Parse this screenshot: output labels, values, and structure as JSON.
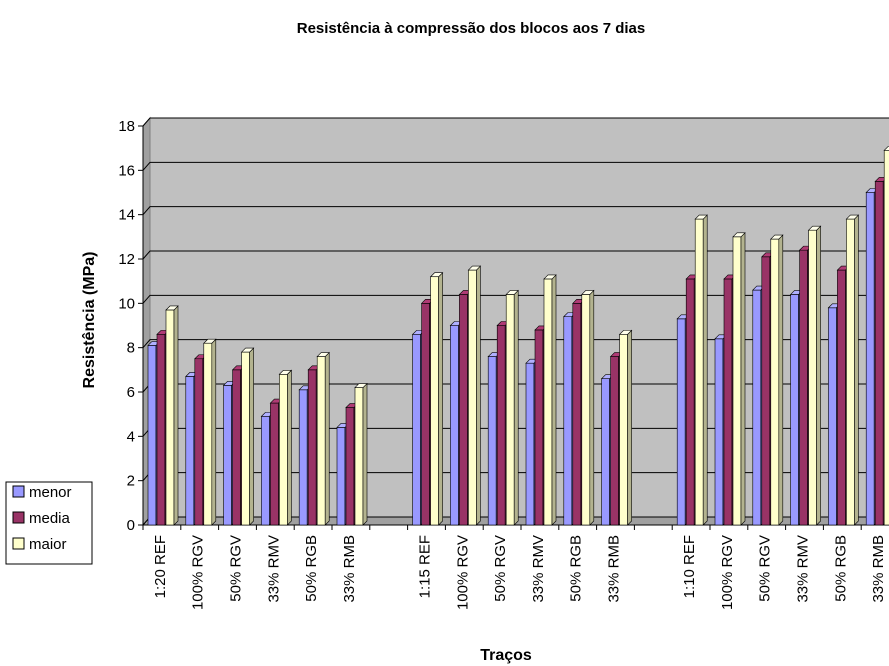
{
  "chart_data": {
    "type": "bar",
    "title": "Resistência à compressão dos blocos aos 7 dias",
    "x_label": "Traços",
    "y_label": "Resistência (MPa)",
    "categories": [
      "1:20 REF",
      "100% RGV",
      "50% RGV",
      "33% RMV",
      "50% RGB",
      "33% RMB",
      null,
      "1:15 REF",
      "100% RGV",
      "50% RGV",
      "33% RMV",
      "50% RGB",
      "33% RMB",
      null,
      "1:10 REF",
      "100% RGV",
      "50% RGV",
      "33% RMV",
      "50% RGB",
      "33% RMB"
    ],
    "series": [
      {
        "name": "menor",
        "color": "#9999ff",
        "values": [
          8.1,
          6.7,
          6.3,
          4.9,
          6.1,
          4.4,
          null,
          8.6,
          9.0,
          7.6,
          7.3,
          9.4,
          6.6,
          null,
          9.3,
          8.4,
          10.6,
          10.4,
          9.8,
          15.0
        ]
      },
      {
        "name": "media",
        "color": "#993366",
        "values": [
          8.6,
          7.5,
          7.0,
          5.5,
          7.0,
          5.3,
          null,
          10.0,
          10.4,
          9.0,
          8.8,
          10.0,
          7.6,
          null,
          11.1,
          11.1,
          12.1,
          12.4,
          11.5,
          15.5
        ]
      },
      {
        "name": "maior",
        "color": "#ffffcc",
        "values": [
          9.7,
          8.2,
          7.8,
          6.8,
          7.6,
          6.2,
          null,
          11.2,
          11.5,
          10.4,
          11.1,
          10.4,
          8.6,
          null,
          13.8,
          13.0,
          12.9,
          13.3,
          13.8,
          16.9
        ]
      }
    ],
    "ylim": [
      0,
      18
    ],
    "yticks": [
      0,
      2,
      4,
      6,
      8,
      10,
      12,
      14,
      16,
      18
    ],
    "grid": true,
    "legend": "left"
  }
}
